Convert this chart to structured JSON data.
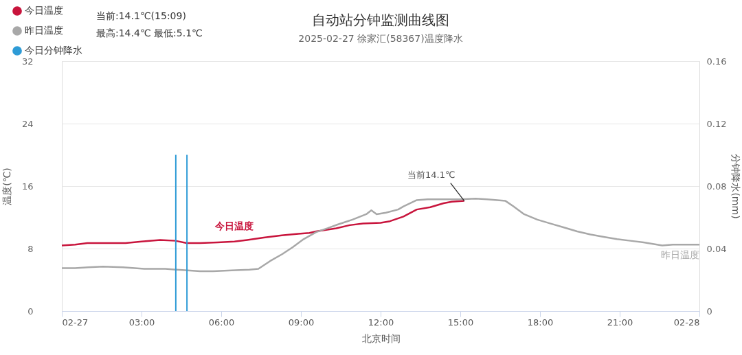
{
  "chart_data": {
    "type": "line",
    "title": "自动站分钟监测曲线图",
    "subtitle": "2025-02-27 徐家汇(58367)温度降水",
    "xlabel": "北京时间",
    "ylabel": "温度(℃)",
    "y2label": "分钟降水(mm)",
    "xlim": [
      0,
      24
    ],
    "xticks": [
      {
        "value": 0,
        "label": "02-27"
      },
      {
        "value": 3,
        "label": "03:00"
      },
      {
        "value": 6,
        "label": "06:00"
      },
      {
        "value": 9,
        "label": "09:00"
      },
      {
        "value": 12,
        "label": "12:00"
      },
      {
        "value": 15,
        "label": "15:00"
      },
      {
        "value": 18,
        "label": "18:00"
      },
      {
        "value": 21,
        "label": "21:00"
      },
      {
        "value": 24,
        "label": "02-28"
      }
    ],
    "ylim": [
      0,
      32
    ],
    "yticks": [
      0,
      8,
      16,
      24,
      32
    ],
    "y2lim": [
      0,
      0.16
    ],
    "y2ticks": [
      0,
      0.04,
      0.08,
      0.12,
      0.16
    ],
    "grid": "y",
    "legend": "top left",
    "series": [
      {
        "name": "今日温度",
        "color": "#c8143c",
        "x": [
          0,
          0.5,
          0.96,
          1.5,
          2.4,
          3.0,
          3.7,
          4.27,
          4.7,
          5.2,
          5.87,
          6.5,
          6.98,
          7.6,
          8.28,
          8.9,
          9.32,
          9.57,
          10.33,
          10.84,
          11.34,
          12.0,
          12.35,
          12.86,
          13.36,
          13.87,
          14.37,
          14.68,
          15.15
        ],
        "values": [
          8.4,
          8.5,
          8.7,
          8.7,
          8.7,
          8.9,
          9.1,
          9.0,
          8.7,
          8.7,
          8.8,
          8.9,
          9.1,
          9.4,
          9.7,
          9.9,
          10.0,
          10.2,
          10.6,
          11.0,
          11.2,
          11.3,
          11.5,
          12.1,
          13.0,
          13.3,
          13.8,
          14.0,
          14.1
        ]
      },
      {
        "name": "昨日温度",
        "color": "#a8a8a8",
        "x": [
          0,
          0.5,
          1.0,
          1.55,
          2.3,
          3.1,
          3.9,
          4.73,
          5.2,
          5.69,
          6.4,
          7.06,
          7.4,
          7.84,
          8.3,
          8.7,
          9.1,
          9.57,
          10.0,
          10.4,
          10.94,
          11.46,
          11.65,
          11.85,
          12.2,
          12.66,
          12.86,
          13.36,
          13.77,
          14.37,
          14.98,
          15.58,
          16.0,
          16.39,
          16.7,
          17.0,
          17.4,
          17.9,
          18.4,
          18.9,
          19.4,
          19.9,
          20.4,
          20.9,
          21.4,
          21.9,
          22.6,
          23.0,
          23.4,
          24
        ],
        "values": [
          5.5,
          5.5,
          5.6,
          5.7,
          5.6,
          5.4,
          5.4,
          5.2,
          5.1,
          5.1,
          5.2,
          5.3,
          5.4,
          6.4,
          7.3,
          8.2,
          9.2,
          10.1,
          10.6,
          11.1,
          11.7,
          12.4,
          12.9,
          12.4,
          12.6,
          13.0,
          13.4,
          14.2,
          14.3,
          14.3,
          14.3,
          14.4,
          14.3,
          14.2,
          14.1,
          13.4,
          12.4,
          11.7,
          11.2,
          10.7,
          10.2,
          9.8,
          9.5,
          9.2,
          9.0,
          8.8,
          8.4,
          8.5,
          8.5,
          8.5
        ]
      },
      {
        "name": "今日分钟降水",
        "type": "bar",
        "axis": "y2",
        "color": "#2e9bd6",
        "x": [
          4.29,
          4.71
        ],
        "values": [
          0.1,
          0.1
        ]
      }
    ],
    "annotations": [
      "当前:14.1℃(15:09)",
      "最高:14.4℃ 最低:5.1℃",
      {
        "text": "当前14.1℃",
        "x": 15.15,
        "y": 14.1
      }
    ]
  }
}
